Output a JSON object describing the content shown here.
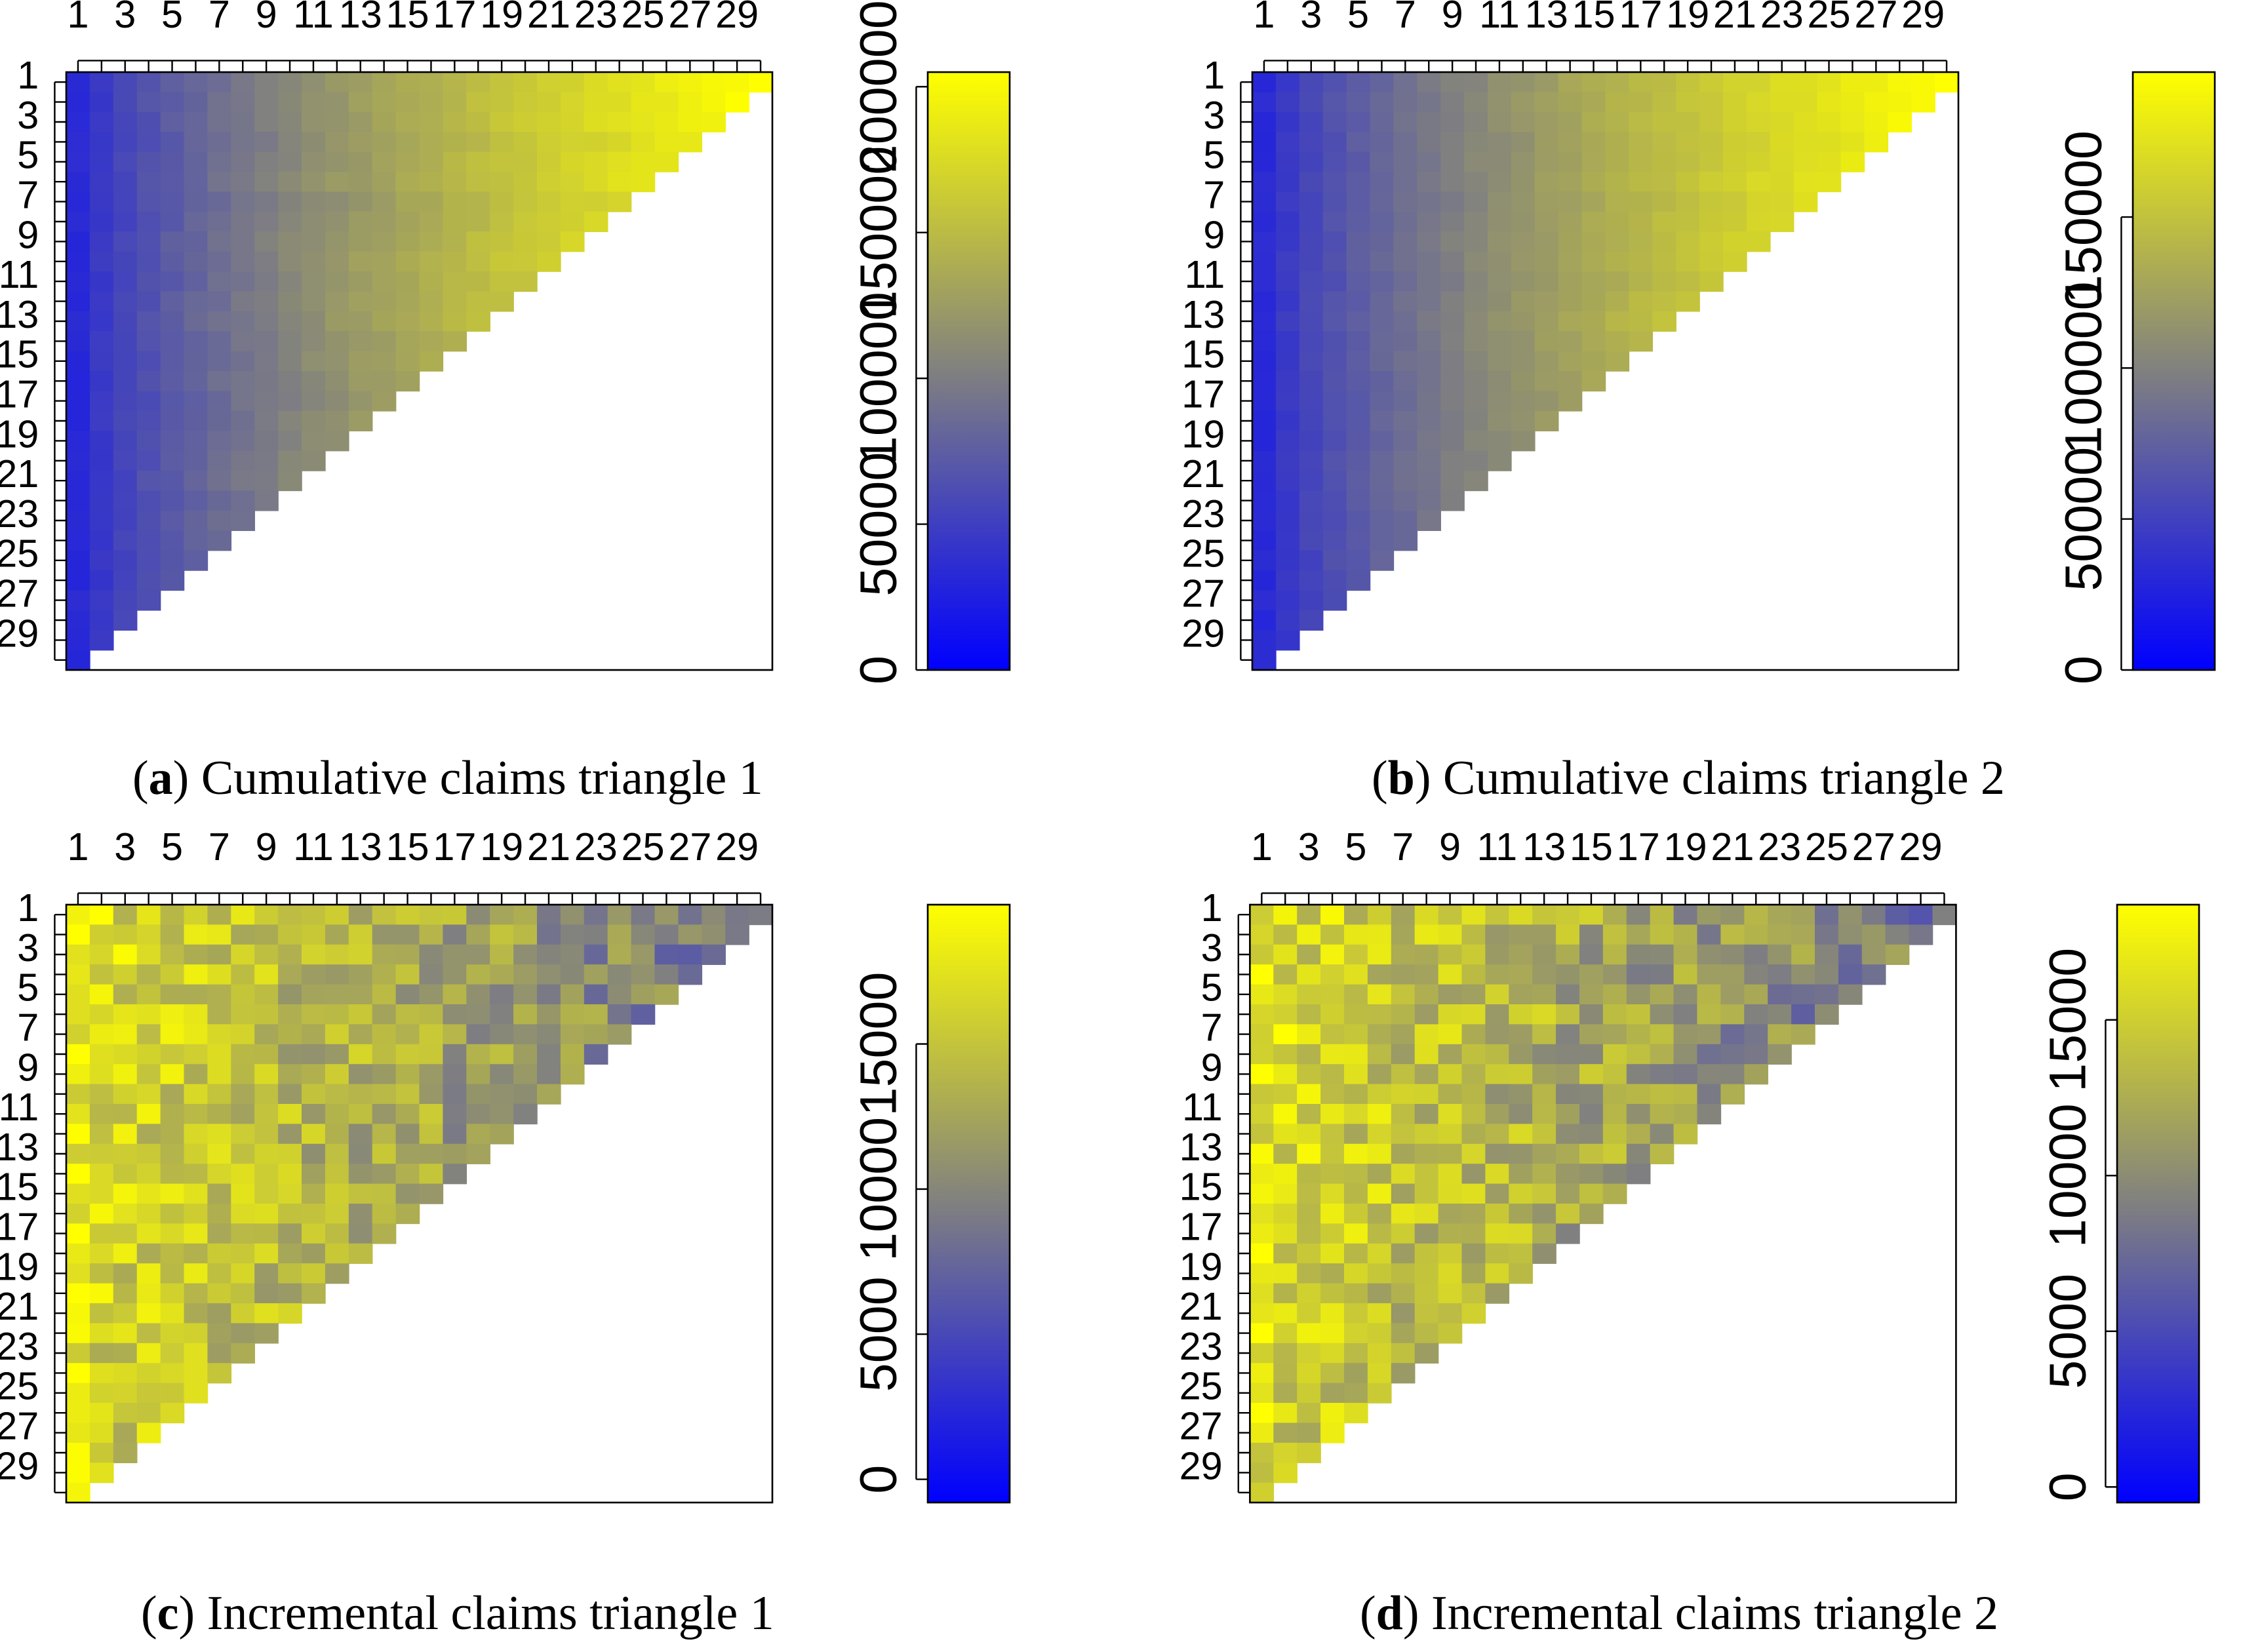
{
  "chart_data": [
    {
      "id": "a",
      "type": "heatmap",
      "caption_letter": "a",
      "caption_text": "Cumulative claims triangle 1",
      "rows": 30,
      "cols": 30,
      "x_tick_labels": [
        "1",
        "3",
        "5",
        "7",
        "9",
        "11",
        "13",
        "15",
        "17",
        "19",
        "21",
        "23",
        "25",
        "27",
        "29"
      ],
      "y_tick_labels": [
        "1",
        "3",
        "5",
        "7",
        "9",
        "11",
        "13",
        "15",
        "17",
        "19",
        "21",
        "23",
        "25",
        "27",
        "29"
      ],
      "colorbar": {
        "min": 0,
        "max": 205000,
        "ticks": [
          0,
          50000,
          100000,
          150000,
          200000
        ],
        "tick_labels": [
          "0",
          "50000",
          "100000",
          "150000",
          "200000"
        ]
      },
      "colors": {
        "low": "#0000ff",
        "mid": "#808080",
        "high": "#ffff00"
      },
      "model": {
        "kind": "cumulative",
        "scale": 205000,
        "grid": [
          1.0,
          1.0,
          1.0,
          0.97,
          0.99,
          1.0,
          0.96,
          0.97,
          0.99,
          1.0,
          0.98,
          0.99,
          1.0,
          0.96,
          0.97,
          0.96,
          0.95,
          0.96,
          0.95,
          0.97,
          0.98,
          0.95,
          0.95,
          0.96,
          0.95,
          0.95,
          0.95,
          0.95,
          0.95,
          0.95
        ],
        "noise": 0.035,
        "seed": 11
      }
    },
    {
      "id": "b",
      "type": "heatmap",
      "caption_letter": "b",
      "caption_text": "Cumulative claims triangle 2",
      "rows": 30,
      "cols": 30,
      "x_tick_labels": [
        "1",
        "3",
        "5",
        "7",
        "9",
        "11",
        "13",
        "15",
        "17",
        "19",
        "21",
        "23",
        "25",
        "27",
        "29"
      ],
      "y_tick_labels": [
        "1",
        "3",
        "5",
        "7",
        "9",
        "11",
        "13",
        "15",
        "17",
        "19",
        "21",
        "23",
        "25",
        "27",
        "29"
      ],
      "colorbar": {
        "min": 0,
        "max": 198000,
        "ticks": [
          0,
          50000,
          100000,
          150000
        ],
        "tick_labels": [
          "0",
          "50000",
          "100000",
          "150000"
        ]
      },
      "colors": {
        "low": "#0000ff",
        "mid": "#808080",
        "high": "#ffff00"
      },
      "model": {
        "kind": "cumulative",
        "scale": 198000,
        "grid": [
          1.0,
          1.0,
          1.0,
          0.98,
          0.99,
          1.0,
          0.98,
          0.99,
          1.0,
          1.0,
          0.98,
          1.0,
          1.02,
          0.99,
          0.98,
          0.97,
          0.96,
          0.97,
          0.96,
          0.97,
          0.98,
          0.96,
          0.96,
          0.96,
          0.95,
          0.95,
          0.95,
          0.95,
          0.95,
          0.95
        ],
        "noise": 0.03,
        "seed": 23
      }
    },
    {
      "id": "c",
      "type": "heatmap",
      "caption_letter": "c",
      "caption_text": "Incremental claims triangle 1",
      "rows": 30,
      "cols": 30,
      "x_tick_labels": [
        "1",
        "3",
        "5",
        "7",
        "9",
        "11",
        "13",
        "15",
        "17",
        "19",
        "21",
        "23",
        "25",
        "27",
        "29"
      ],
      "y_tick_labels": [
        "1",
        "3",
        "5",
        "7",
        "9",
        "11",
        "13",
        "15",
        "17",
        "19",
        "21",
        "23",
        "25",
        "27",
        "29"
      ],
      "colorbar": {
        "min": -800,
        "max": 19800,
        "ticks": [
          0,
          5000,
          10000,
          15000
        ],
        "tick_labels": [
          "0",
          "5000",
          "10000",
          "15000"
        ]
      },
      "colors": {
        "low": "#0000ff",
        "mid": "#808080",
        "high": "#ffff00"
      },
      "model": {
        "kind": "incremental",
        "scale": 19800,
        "noise": 0.16,
        "seed": 37
      }
    },
    {
      "id": "d",
      "type": "heatmap",
      "caption_letter": "d",
      "caption_text": "Incremental claims triangle 2",
      "rows": 30,
      "cols": 30,
      "x_tick_labels": [
        "1",
        "3",
        "5",
        "7",
        "9",
        "11",
        "13",
        "15",
        "17",
        "19",
        "21",
        "23",
        "25",
        "27",
        "29"
      ],
      "y_tick_labels": [
        "1",
        "3",
        "5",
        "7",
        "9",
        "11",
        "13",
        "15",
        "17",
        "19",
        "21",
        "23",
        "25",
        "27",
        "29"
      ],
      "colorbar": {
        "min": -500,
        "max": 18700,
        "ticks": [
          0,
          5000,
          10000,
          15000
        ],
        "tick_labels": [
          "0",
          "5000",
          "10000",
          "15000"
        ]
      },
      "colors": {
        "low": "#0000ff",
        "mid": "#808080",
        "high": "#ffff00"
      },
      "model": {
        "kind": "incremental",
        "scale": 18700,
        "noise": 0.17,
        "seed": 53
      }
    }
  ]
}
